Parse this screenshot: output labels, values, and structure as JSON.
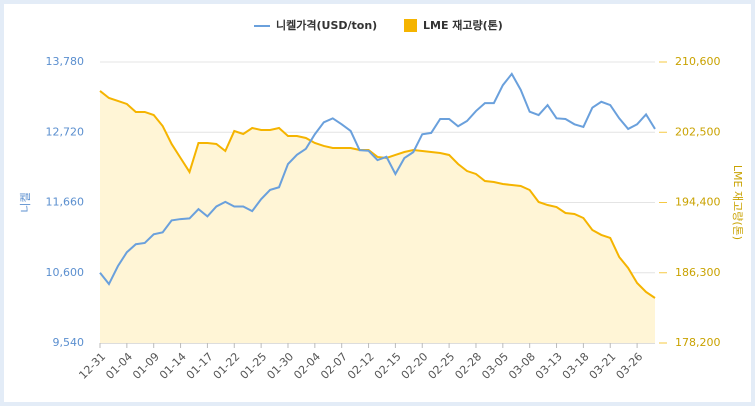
{
  "chart_data": {
    "type": "dual-axis-line-area",
    "legend": [
      "니켈가격(USD/ton)",
      "LME 재고량(톤)"
    ],
    "ylabel": "니켈",
    "y2label": "LME 재고량(톤)",
    "categories": [
      "12-31",
      null,
      null,
      "01-04",
      null,
      null,
      "01-09",
      null,
      null,
      "01-14",
      null,
      null,
      "01-17",
      null,
      null,
      "01-22",
      null,
      null,
      "01-25",
      null,
      null,
      "01-30",
      null,
      null,
      "02-04",
      null,
      null,
      "02-07",
      null,
      null,
      "02-12",
      null,
      null,
      "02-15",
      null,
      null,
      "02-20",
      null,
      null,
      "02-25",
      null,
      null,
      "02-28",
      null,
      null,
      "03-05",
      null,
      null,
      "03-08",
      null,
      null,
      "03-13",
      null,
      null,
      "03-18",
      null,
      null,
      "03-21",
      null,
      null,
      "03-26",
      null,
      null
    ],
    "series": [
      {
        "name": "니켈가격(USD/ton)",
        "type": "line",
        "color": "#6aa0dc",
        "axis": "y",
        "values": [
          10600,
          10430,
          10700,
          10910,
          11030,
          11050,
          11180,
          11210,
          11390,
          11410,
          11420,
          11560,
          11450,
          11600,
          11670,
          11600,
          11600,
          11530,
          11710,
          11850,
          11890,
          12240,
          12380,
          12470,
          12690,
          12870,
          12930,
          12840,
          12740,
          12450,
          12440,
          12300,
          12350,
          12090,
          12330,
          12420,
          12690,
          12710,
          12920,
          12920,
          12810,
          12890,
          13040,
          13160,
          13160,
          13430,
          13600,
          13360,
          13030,
          12980,
          13130,
          12930,
          12920,
          12840,
          12800,
          13090,
          13180,
          13130,
          12930,
          12770,
          12840,
          12990,
          12770
        ]
      },
      {
        "name": "LME 재고량(톤)",
        "type": "area",
        "color": "#f5b400",
        "fill": "#fff5d6",
        "axis": "y2",
        "values": [
          207260,
          206450,
          206110,
          205760,
          204840,
          204840,
          204490,
          203220,
          201150,
          199530,
          197920,
          201260,
          201260,
          201150,
          200340,
          202640,
          202300,
          202990,
          202760,
          202760,
          202990,
          202070,
          202070,
          201840,
          201260,
          200920,
          200680,
          200680,
          200680,
          200450,
          200450,
          199650,
          199530,
          199880,
          200220,
          200450,
          200340,
          200220,
          200110,
          199880,
          198840,
          198030,
          197690,
          196880,
          196760,
          196530,
          196420,
          196300,
          195840,
          194460,
          194110,
          193880,
          193190,
          193080,
          192610,
          191230,
          190660,
          190310,
          188120,
          186850,
          185120,
          184080,
          183390
        ]
      }
    ],
    "ylim": [
      9540,
      13780
    ],
    "yticks": [
      {
        "value": 9540,
        "label": "9,540"
      },
      {
        "value": 10600,
        "label": "10,600"
      },
      {
        "value": 11660,
        "label": "11,660"
      },
      {
        "value": 12720,
        "label": "12,720"
      },
      {
        "value": 13780,
        "label": "13,780"
      }
    ],
    "y2lim": [
      178200,
      210600
    ],
    "y2ticks": [
      {
        "value": 178200,
        "label": "178,200"
      },
      {
        "value": 186300,
        "label": "186,300"
      },
      {
        "value": 194400,
        "label": "194,400"
      },
      {
        "value": 202500,
        "label": "202,500"
      },
      {
        "value": 210600,
        "label": "210,600"
      }
    ],
    "grid": true
  }
}
